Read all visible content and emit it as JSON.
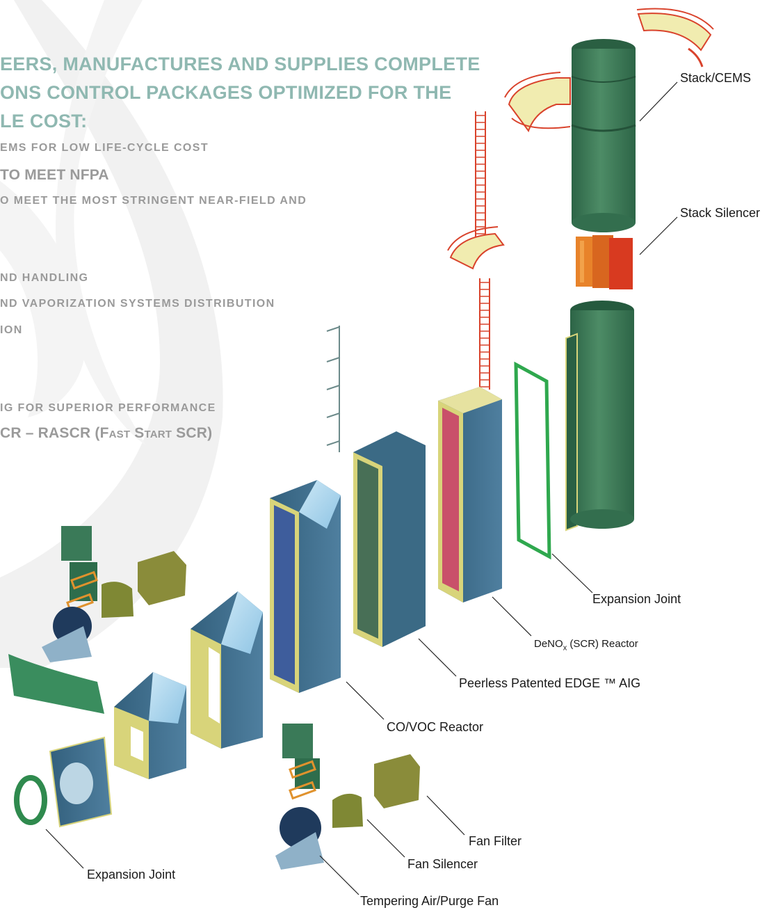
{
  "heading": {
    "lines": [
      "EERS, MANUFACTURES AND SUPPLIES COMPLETE",
      "ONS CONTROL PACKAGES OPTIMIZED FOR THE",
      "LE COST:"
    ]
  },
  "bullets": [
    "EMS FOR LOW LIFE-CYCLE COST",
    "TO MEET NFPA",
    "O MEET THE MOST STRINGENT NEAR-FIELD AND",
    "ND HANDLING",
    "ND VAPORIZATION SYSTEMS DISTRIBUTION",
    "ION",
    "IG FOR SUPERIOR PERFORMANCE",
    "CR – RASCR (Fast Start SCR)"
  ],
  "labels": {
    "stack_cems": "Stack/CEMS",
    "stack_silencer": "Stack Silencer",
    "expansion_joint_top": "Expansion Joint",
    "denox_prefix": "DeNO",
    "denox_sub": "x",
    "denox_suffix": " (SCR) Reactor",
    "edge_aig": "Peerless Patented EDGE ™ AIG",
    "co_voc": "CO/VOC Reactor",
    "fan_filter": "Fan Filter",
    "fan_silencer": "Fan Silencer",
    "expansion_joint_bottom": "Expansion Joint",
    "tempering_fan": "Tempering Air/Purge Fan"
  },
  "colors": {
    "heading": "#8fb8b1",
    "bullet_text": "#9a9a9a",
    "stack_green": "#3d7a57",
    "duct_blue": "#3f6d8c",
    "frame_yellow": "#d8d47a",
    "catalyst_red": "#c9506a",
    "silencer_red": "#d83a20",
    "silencer_orange": "#e8832a",
    "platform_yellow": "#f1ecb0",
    "railing_red": "#d9432c",
    "fan_olive": "#8a8c3a",
    "fan_navy": "#1f3a5c",
    "glass_blue": "#a9d3ec"
  }
}
